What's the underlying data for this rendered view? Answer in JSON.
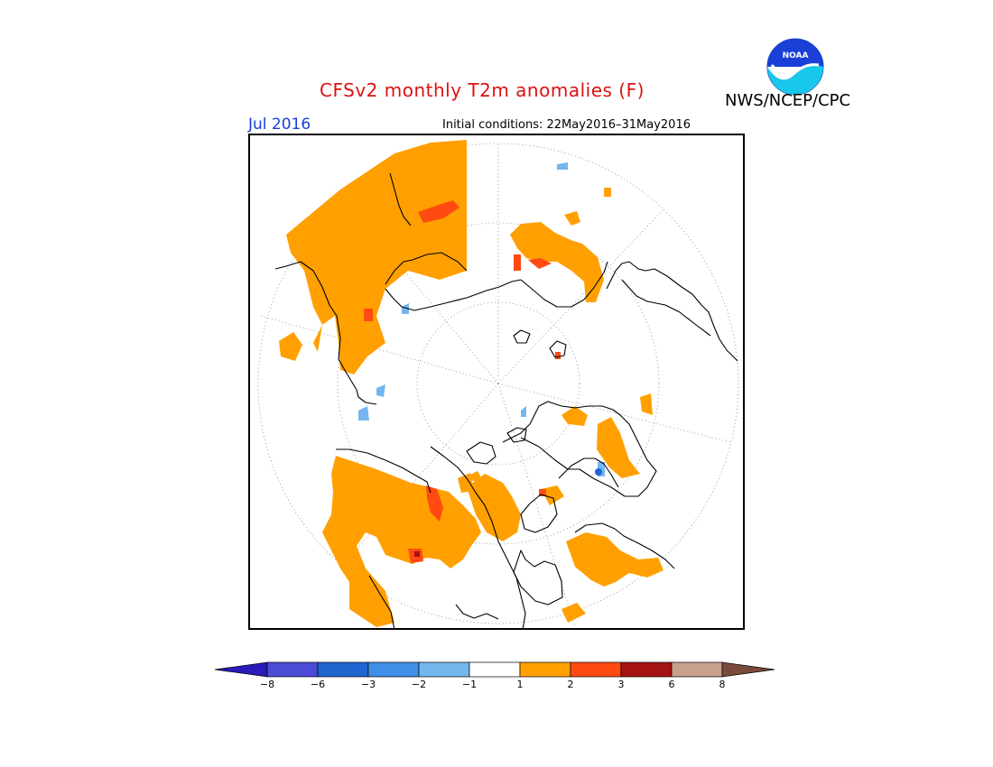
{
  "header": {
    "title": "CFSv2 monthly T2m anomalies (F)",
    "agency": "NWS/NCEP/CPC",
    "logo_text": "NOAA",
    "month": "Jul 2016",
    "initial_conditions": "Initial conditions: 22May2016–31May2016"
  },
  "colors": {
    "title": "#dd1111",
    "month": "#1a3fd6",
    "anomaly_1_2": "#ffa000",
    "anomaly_2_3": "#ff4a12",
    "anomaly_3_6": "#a51212",
    "negative_1_2": "#74b6ee",
    "negative_3_6": "#1f64d6"
  },
  "colorbar": {
    "colors": [
      "#2a1ab8",
      "#4b4bd6",
      "#2165d0",
      "#3f8fe8",
      "#74b6ee",
      "#ffffff",
      "#ffa000",
      "#ff4a12",
      "#a51212",
      "#c8a08c",
      "#7a4a3a"
    ],
    "ticks": [
      "−8",
      "−6",
      "−3",
      "−2",
      "−1",
      "1",
      "2",
      "3",
      "6",
      "8"
    ]
  }
}
